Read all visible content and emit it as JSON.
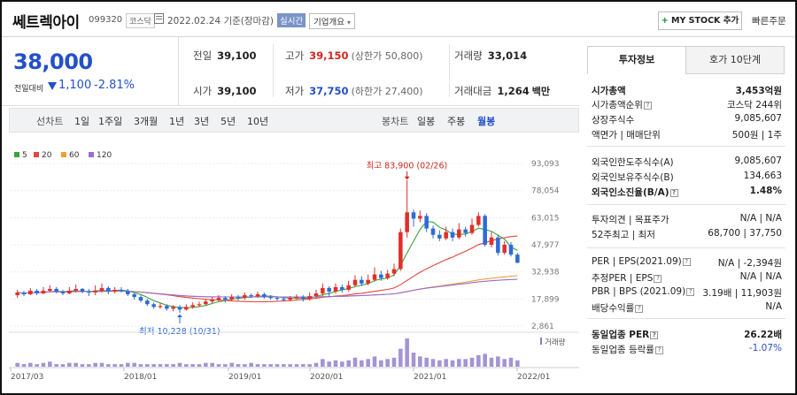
{
  "header": {
    "stock_name": "쎄트렉아이",
    "code": "099320",
    "market": "코스닥",
    "date": "2022.02.24 기준(장마감)",
    "realtime_label": "실시간",
    "company_overview_label": "기업개요",
    "my_stock_plus": "+",
    "my_stock_label": "MY STOCK 추가",
    "quick_order_label": "빠른주문"
  },
  "price": {
    "current": "38,000",
    "prev_label": "전일대비",
    "change": "1,100",
    "change_pct": "-2.81%",
    "direction": "down"
  },
  "stats": {
    "prev_close": {
      "label": "전일",
      "value": "39,100"
    },
    "high": {
      "label": "고가",
      "value": "39,150",
      "sub": "(상한가 50,800)"
    },
    "volume": {
      "label": "거래량",
      "value": "33,014"
    },
    "open": {
      "label": "시가",
      "value": "39,100"
    },
    "low": {
      "label": "저가",
      "value": "37,750",
      "sub": "(하한가 27,400)"
    },
    "trade_value": {
      "label": "거래대금",
      "value": "1,264",
      "unit": "백만"
    }
  },
  "toolbar": {
    "line_chart_label": "선차트",
    "line_periods": [
      "1일",
      "1주일",
      "3개월",
      "1년",
      "3년",
      "5년",
      "10년"
    ],
    "candle_label": "봉차트",
    "candle_periods": [
      "일봉",
      "주봉",
      "월봉"
    ],
    "active_candle": "월봉"
  },
  "chart_data": {
    "type": "candlestick",
    "legend": [
      {
        "name": "5",
        "color": "#3aa53a"
      },
      {
        "name": "20",
        "color": "#e0463a"
      },
      {
        "name": "60",
        "color": "#f0a030"
      },
      {
        "name": "120",
        "color": "#9b6cd0"
      }
    ],
    "y_ticks": [
      "93,093",
      "78,054",
      "63,015",
      "47,977",
      "32,938",
      "17,899",
      "2,861"
    ],
    "y_range": [
      2861,
      93093
    ],
    "x_ticks": [
      "2017/03",
      "2018/01",
      "2019/01",
      "2020/01",
      "2021/01",
      "2022/01"
    ],
    "high_annotation": "최고 83,900 (02/26)",
    "low_annotation": "최저 10,228 (10/31)",
    "volume_label": "거래량",
    "candles": [
      {
        "o": 20000,
        "c": 21500,
        "h": 23000,
        "l": 18500
      },
      {
        "o": 21500,
        "c": 20500,
        "h": 22500,
        "l": 19500
      },
      {
        "o": 20500,
        "c": 22500,
        "h": 24000,
        "l": 20000
      },
      {
        "o": 22500,
        "c": 21000,
        "h": 23500,
        "l": 20000
      },
      {
        "o": 21000,
        "c": 22500,
        "h": 24500,
        "l": 20500
      },
      {
        "o": 22500,
        "c": 23500,
        "h": 25500,
        "l": 21500
      },
      {
        "o": 23500,
        "c": 22000,
        "h": 24500,
        "l": 21000
      },
      {
        "o": 22000,
        "c": 21000,
        "h": 23000,
        "l": 20000
      },
      {
        "o": 21000,
        "c": 22500,
        "h": 24500,
        "l": 20500
      },
      {
        "o": 22500,
        "c": 23500,
        "h": 26000,
        "l": 21500
      },
      {
        "o": 23500,
        "c": 22000,
        "h": 24000,
        "l": 21000
      },
      {
        "o": 22000,
        "c": 21500,
        "h": 23500,
        "l": 19500
      },
      {
        "o": 21500,
        "c": 22500,
        "h": 25500,
        "l": 20000
      },
      {
        "o": 22500,
        "c": 24000,
        "h": 26500,
        "l": 21500
      },
      {
        "o": 24000,
        "c": 22000,
        "h": 25000,
        "l": 20500
      },
      {
        "o": 22000,
        "c": 23000,
        "h": 24500,
        "l": 21000
      },
      {
        "o": 23000,
        "c": 22500,
        "h": 24500,
        "l": 21500
      },
      {
        "o": 22500,
        "c": 20500,
        "h": 23500,
        "l": 19500
      },
      {
        "o": 20500,
        "c": 19000,
        "h": 21500,
        "l": 17500
      },
      {
        "o": 19000,
        "c": 17000,
        "h": 20000,
        "l": 16000
      },
      {
        "o": 17000,
        "c": 15000,
        "h": 18000,
        "l": 14000
      },
      {
        "o": 15000,
        "c": 13500,
        "h": 16000,
        "l": 12500
      },
      {
        "o": 13500,
        "c": 14000,
        "h": 15500,
        "l": 12500
      },
      {
        "o": 14000,
        "c": 12500,
        "h": 15000,
        "l": 11500
      },
      {
        "o": 12500,
        "c": 13500,
        "h": 14500,
        "l": 11000
      },
      {
        "o": 13500,
        "c": 12000,
        "h": 14500,
        "l": 10228
      },
      {
        "o": 12000,
        "c": 13500,
        "h": 15000,
        "l": 11500
      },
      {
        "o": 13500,
        "c": 14500,
        "h": 16000,
        "l": 12500
      },
      {
        "o": 14500,
        "c": 15000,
        "h": 16500,
        "l": 13500
      },
      {
        "o": 15000,
        "c": 16500,
        "h": 18000,
        "l": 14500
      },
      {
        "o": 16500,
        "c": 17500,
        "h": 19000,
        "l": 15500
      },
      {
        "o": 17500,
        "c": 18500,
        "h": 20000,
        "l": 16500
      },
      {
        "o": 18500,
        "c": 17500,
        "h": 19500,
        "l": 16000
      },
      {
        "o": 17500,
        "c": 19000,
        "h": 20500,
        "l": 16500
      },
      {
        "o": 19000,
        "c": 18500,
        "h": 20000,
        "l": 17000
      },
      {
        "o": 18500,
        "c": 20000,
        "h": 21500,
        "l": 17500
      },
      {
        "o": 20000,
        "c": 19500,
        "h": 21000,
        "l": 18500
      },
      {
        "o": 19500,
        "c": 20500,
        "h": 22000,
        "l": 18500
      },
      {
        "o": 20500,
        "c": 19000,
        "h": 21500,
        "l": 18000
      },
      {
        "o": 19000,
        "c": 18500,
        "h": 20000,
        "l": 17500
      },
      {
        "o": 18500,
        "c": 18000,
        "h": 19500,
        "l": 17000
      },
      {
        "o": 18000,
        "c": 17500,
        "h": 19000,
        "l": 16500
      },
      {
        "o": 17500,
        "c": 18500,
        "h": 19500,
        "l": 16500
      },
      {
        "o": 18500,
        "c": 19000,
        "h": 20500,
        "l": 17500
      },
      {
        "o": 19000,
        "c": 18000,
        "h": 20000,
        "l": 16500
      },
      {
        "o": 18000,
        "c": 19500,
        "h": 21500,
        "l": 17000
      },
      {
        "o": 19500,
        "c": 21000,
        "h": 23000,
        "l": 18500
      },
      {
        "o": 21000,
        "c": 24000,
        "h": 26500,
        "l": 19500
      },
      {
        "o": 24000,
        "c": 22000,
        "h": 25000,
        "l": 19000
      },
      {
        "o": 22000,
        "c": 24500,
        "h": 26500,
        "l": 21000
      },
      {
        "o": 24500,
        "c": 23000,
        "h": 26000,
        "l": 21500
      },
      {
        "o": 23000,
        "c": 25500,
        "h": 28000,
        "l": 22000
      },
      {
        "o": 25500,
        "c": 28500,
        "h": 31000,
        "l": 24500
      },
      {
        "o": 28500,
        "c": 26500,
        "h": 30500,
        "l": 25000
      },
      {
        "o": 26500,
        "c": 28500,
        "h": 31500,
        "l": 25500
      },
      {
        "o": 28500,
        "c": 31500,
        "h": 35500,
        "l": 27500
      },
      {
        "o": 31500,
        "c": 29500,
        "h": 33500,
        "l": 28000
      },
      {
        "o": 29500,
        "c": 32000,
        "h": 34000,
        "l": 28500
      },
      {
        "o": 32000,
        "c": 34500,
        "h": 37500,
        "l": 30500
      },
      {
        "o": 34500,
        "c": 55000,
        "h": 57000,
        "l": 33500
      },
      {
        "o": 55000,
        "c": 66000,
        "h": 83900,
        "l": 52000
      },
      {
        "o": 66000,
        "c": 62500,
        "h": 67500,
        "l": 58000
      },
      {
        "o": 62500,
        "c": 64000,
        "h": 67000,
        "l": 60500
      },
      {
        "o": 64000,
        "c": 57000,
        "h": 65500,
        "l": 55000
      },
      {
        "o": 57000,
        "c": 53500,
        "h": 58500,
        "l": 51500
      },
      {
        "o": 53500,
        "c": 51500,
        "h": 56000,
        "l": 50000
      },
      {
        "o": 51500,
        "c": 55000,
        "h": 58000,
        "l": 50500
      },
      {
        "o": 55000,
        "c": 52000,
        "h": 57000,
        "l": 50000
      },
      {
        "o": 52000,
        "c": 56500,
        "h": 60000,
        "l": 51000
      },
      {
        "o": 56500,
        "c": 54500,
        "h": 58000,
        "l": 52500
      },
      {
        "o": 54500,
        "c": 59000,
        "h": 62500,
        "l": 53500
      },
      {
        "o": 59000,
        "c": 64000,
        "h": 66000,
        "l": 58000
      },
      {
        "o": 64000,
        "c": 48000,
        "h": 65000,
        "l": 47000
      },
      {
        "o": 48000,
        "c": 52000,
        "h": 55000,
        "l": 46500
      },
      {
        "o": 52000,
        "c": 43500,
        "h": 53500,
        "l": 42000
      },
      {
        "o": 43500,
        "c": 48000,
        "h": 50000,
        "l": 42500
      },
      {
        "o": 48000,
        "c": 42500,
        "h": 49500,
        "l": 41500
      },
      {
        "o": 42500,
        "c": 38000,
        "h": 43500,
        "l": 37750
      }
    ],
    "volume": [
      3,
      2,
      3,
      2,
      3,
      4,
      2,
      2,
      3,
      3,
      2,
      2,
      3,
      3,
      2,
      2,
      2,
      3,
      3,
      2,
      2,
      2,
      2,
      2,
      2,
      3,
      2,
      2,
      2,
      3,
      3,
      2,
      2,
      3,
      2,
      2,
      3,
      2,
      2,
      2,
      2,
      2,
      2,
      2,
      2,
      2,
      3,
      6,
      4,
      5,
      4,
      5,
      7,
      5,
      6,
      8,
      5,
      6,
      7,
      14,
      22,
      11,
      8,
      7,
      6,
      5,
      6,
      5,
      6,
      6,
      7,
      9,
      10,
      7,
      8,
      6,
      7,
      5
    ]
  },
  "right_panel": {
    "tab_active": "투자정보",
    "tab_inactive": "호가 10단계",
    "rows": [
      {
        "label": "시가총액",
        "value": "3,453억원",
        "bold": true
      },
      {
        "label": "시가총액순위",
        "value": "코스닥 244위",
        "info": true
      },
      {
        "label": "상장주식수",
        "value": "9,085,607"
      },
      {
        "label": "액면가 | 매매단위",
        "value": "500원 | 1주"
      },
      {
        "label": "외국인한도주식수(A)",
        "value": "9,085,607"
      },
      {
        "label": "외국인보유주식수(B)",
        "value": "134,663"
      },
      {
        "label": "외국인소진율(B/A)",
        "value": "1.48%",
        "bold": true,
        "info": true
      },
      {
        "label": "투자의견 | 목표주가",
        "value": "N/A | N/A"
      },
      {
        "label": "52주최고 | 최저",
        "value": "68,700 | 37,750"
      },
      {
        "label": "PER | EPS(2021.09)",
        "value": "N/A | -2,394원",
        "info": true
      },
      {
        "label": "추정PER | EPS",
        "value": "N/A | N/A",
        "info": true
      },
      {
        "label": "PBR | BPS (2021.09)",
        "value": "3.19배 | 11,903원",
        "info": true
      },
      {
        "label": "배당수익률",
        "value": "N/A",
        "info": true
      },
      {
        "label": "동일업종 PER",
        "value": "26.22배",
        "bold": true,
        "info": true
      },
      {
        "label": "동일업종 등락률",
        "value": "-1.07%",
        "info": true,
        "blue": true
      }
    ]
  }
}
